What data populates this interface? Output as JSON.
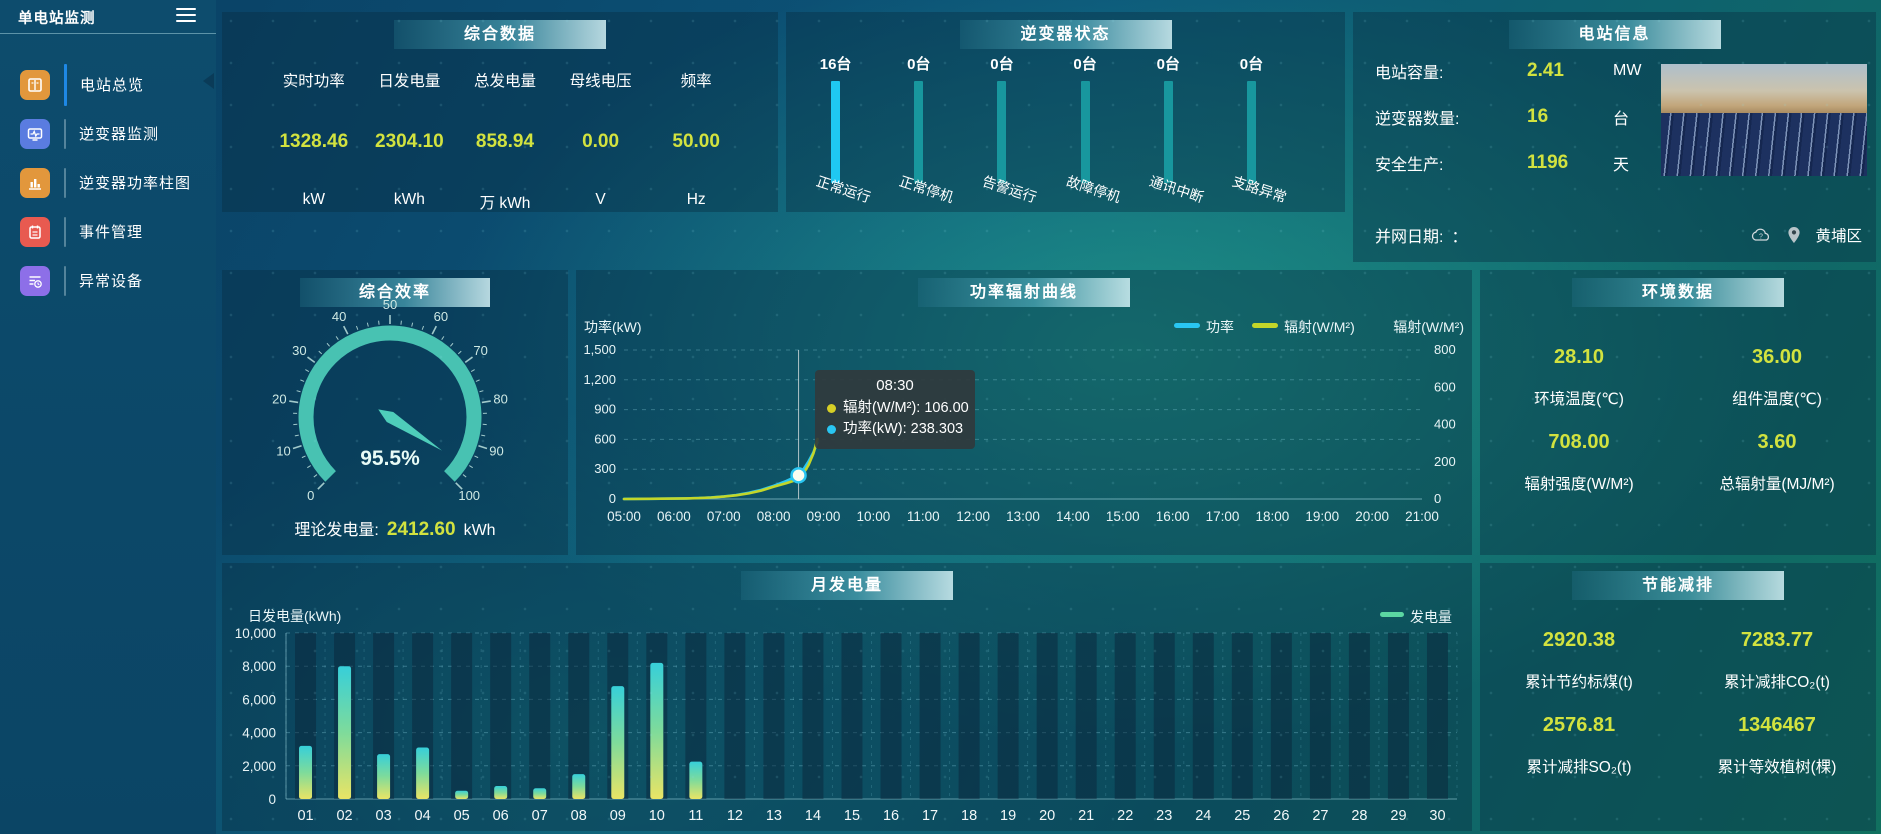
{
  "app": {
    "title": "单电站监测"
  },
  "sidebar": {
    "items": [
      {
        "label": "电站总览",
        "color": "#e2973c",
        "active": true
      },
      {
        "label": "逆变器监测",
        "color": "#5a7ce0",
        "active": false
      },
      {
        "label": "逆变器功率柱图",
        "color": "#e2973c",
        "active": false
      },
      {
        "label": "事件管理",
        "color": "#e85a50",
        "active": false
      },
      {
        "label": "异常设备",
        "color": "#8d6fe8",
        "active": false
      }
    ]
  },
  "overview": {
    "title": "综合数据",
    "metrics": [
      {
        "label": "实时功率",
        "value": "1328.46",
        "unit": "kW"
      },
      {
        "label": "日发电量",
        "value": "2304.10",
        "unit": "kWh"
      },
      {
        "label": "总发电量",
        "value": "858.94",
        "unit": "万 kWh"
      },
      {
        "label": "母线电压",
        "value": "0.00",
        "unit": "V"
      },
      {
        "label": "频率",
        "value": "50.00",
        "unit": "Hz"
      }
    ]
  },
  "inverter_status": {
    "title": "逆变器状态",
    "items": [
      {
        "count": "16台",
        "label": "正常运行",
        "color": "#1fc8f2"
      },
      {
        "count": "0台",
        "label": "正常停机",
        "color": "#18979e"
      },
      {
        "count": "0台",
        "label": "告警运行",
        "color": "#18979e"
      },
      {
        "count": "0台",
        "label": "故障停机",
        "color": "#18979e"
      },
      {
        "count": "0台",
        "label": "通讯中断",
        "color": "#18979e"
      },
      {
        "count": "0台",
        "label": "支路异常",
        "color": "#18979e"
      }
    ]
  },
  "station_info": {
    "title": "电站信息",
    "rows": [
      {
        "label": "电站容量:",
        "value": "2.41",
        "unit": "MW"
      },
      {
        "label": "逆变器数量:",
        "value": "16",
        "unit": "台"
      },
      {
        "label": "安全生产:",
        "value": "1196",
        "unit": "天"
      }
    ],
    "grid_date_label": "并网日期:",
    "grid_date_value": "：",
    "location": "黄埔区"
  },
  "efficiency": {
    "title": "综合效率",
    "footer": {
      "label": "理论发电量:",
      "value": "2412.60",
      "unit": "kWh"
    }
  },
  "power_chart": {
    "title": "功率辐射曲线",
    "tooltip": {
      "title": "08:30",
      "rows": [
        {
          "label": "辐射(W/M²):",
          "value": "106.00",
          "color": "#d6cf26"
        },
        {
          "label": "功率(kW):",
          "value": "238.303",
          "color": "#29c6f2"
        }
      ]
    }
  },
  "monthly_chart": {
    "title": "月发电量"
  },
  "environment": {
    "title": "环境数据",
    "metrics": [
      {
        "value": "28.10",
        "label": "环境温度(℃)"
      },
      {
        "value": "36.00",
        "label": "组件温度(℃)"
      },
      {
        "value": "708.00",
        "label": "辐射强度(W/M²)"
      },
      {
        "value": "3.60",
        "label": "总辐射量(MJ/M²)"
      }
    ]
  },
  "savings": {
    "title": "节能减排",
    "metrics": [
      {
        "value": "2920.38",
        "label": "累计节约标煤(t)"
      },
      {
        "value": "7283.77",
        "label": "累计减排CO₂(t)"
      },
      {
        "value": "2576.81",
        "label": "累计减排SO₂(t)"
      },
      {
        "value": "1346467",
        "label": "累计等效植树(棵)"
      }
    ]
  },
  "chart_data": [
    {
      "id": "efficiency-gauge",
      "type": "gauge",
      "title": "综合效率",
      "value": 95.5,
      "label": "95.5%",
      "min": 0,
      "max": 100,
      "major_ticks": [
        0,
        10,
        20,
        30,
        40,
        50,
        60,
        70,
        80,
        90,
        100
      ],
      "band_color": "#4ecdba"
    },
    {
      "id": "power-radiation",
      "type": "line",
      "title": "功率辐射曲线",
      "x_range": [
        5,
        21
      ],
      "x_labels": [
        "05:00",
        "06:00",
        "07:00",
        "08:00",
        "09:00",
        "10:00",
        "11:00",
        "12:00",
        "13:00",
        "14:00",
        "15:00",
        "16:00",
        "17:00",
        "18:00",
        "19:00",
        "20:00",
        "21:00"
      ],
      "y_left": {
        "title": "功率(kW)",
        "range": [
          0,
          1500
        ],
        "ticks": [
          0,
          300,
          600,
          900,
          1200,
          1500
        ],
        "tick_labels": [
          "0",
          "300",
          "600",
          "900",
          "1,200",
          "1,500"
        ]
      },
      "y_right": {
        "title": "辐射(W/M²)",
        "range": [
          0,
          800
        ],
        "ticks": [
          0,
          200,
          400,
          600,
          800
        ],
        "tick_labels": [
          "0",
          "200",
          "400",
          "600",
          "800"
        ]
      },
      "series": [
        {
          "name": "功率",
          "color": "#29c6f2",
          "axis": "left",
          "data": [
            [
              5,
              1
            ],
            [
              5.5,
              2
            ],
            [
              6,
              4
            ],
            [
              6.25,
              6
            ],
            [
              6.5,
              10
            ],
            [
              6.75,
              16
            ],
            [
              7,
              26
            ],
            [
              7.25,
              40
            ],
            [
              7.5,
              62
            ],
            [
              7.75,
              92
            ],
            [
              8,
              132
            ],
            [
              8.25,
              180
            ],
            [
              8.5,
              238.303
            ],
            [
              8.6,
              300
            ],
            [
              8.7,
              378
            ],
            [
              8.8,
              472
            ],
            [
              8.88,
              570
            ]
          ]
        },
        {
          "name": "辐射(W/M²)",
          "color": "#c3d629",
          "axis": "right",
          "data": [
            [
              5,
              0
            ],
            [
              5.5,
              1
            ],
            [
              6,
              2
            ],
            [
              6.25,
              3
            ],
            [
              6.5,
              5
            ],
            [
              6.75,
              8
            ],
            [
              7,
              13
            ],
            [
              7.25,
              20
            ],
            [
              7.5,
              30
            ],
            [
              7.75,
              45
            ],
            [
              8,
              66
            ],
            [
              8.25,
              85
            ],
            [
              8.5,
              106
            ],
            [
              8.6,
              138
            ],
            [
              8.7,
              182
            ],
            [
              8.8,
              246
            ],
            [
              8.88,
              322
            ]
          ]
        }
      ],
      "tooltip": {
        "x": 8.5,
        "title": "08:30",
        "rows": [
          {
            "label": "辐射(W/M²)",
            "value": "106.00",
            "color": "#d6cf26"
          },
          {
            "label": "功率(kW)",
            "value": "238.303",
            "color": "#29c6f2"
          }
        ]
      }
    },
    {
      "id": "monthly-generation",
      "type": "bar",
      "title": "月发电量",
      "ylabel": "日发电量(kWh)",
      "legend": "发电量",
      "legend_color": "#5bd6a2",
      "categories": [
        "01",
        "02",
        "03",
        "04",
        "05",
        "06",
        "07",
        "08",
        "09",
        "10",
        "11",
        "12",
        "13",
        "14",
        "15",
        "16",
        "17",
        "18",
        "19",
        "20",
        "21",
        "22",
        "23",
        "24",
        "25",
        "26",
        "27",
        "28",
        "29",
        "30"
      ],
      "values": [
        3200,
        8000,
        2700,
        3100,
        500,
        780,
        650,
        1500,
        6800,
        8200,
        2250,
        0,
        0,
        0,
        0,
        0,
        0,
        0,
        0,
        0,
        0,
        0,
        0,
        0,
        0,
        0,
        0,
        0,
        0,
        0
      ],
      "ylim": [
        0,
        10000
      ],
      "yticks": [
        0,
        2000,
        4000,
        6000,
        8000,
        10000
      ],
      "ytick_labels": [
        "0",
        "2,000",
        "4,000",
        "6,000",
        "8,000",
        "10,000"
      ],
      "bar_gradient": [
        "#e9e465",
        "#7edb9b",
        "#37cfd9"
      ]
    }
  ]
}
